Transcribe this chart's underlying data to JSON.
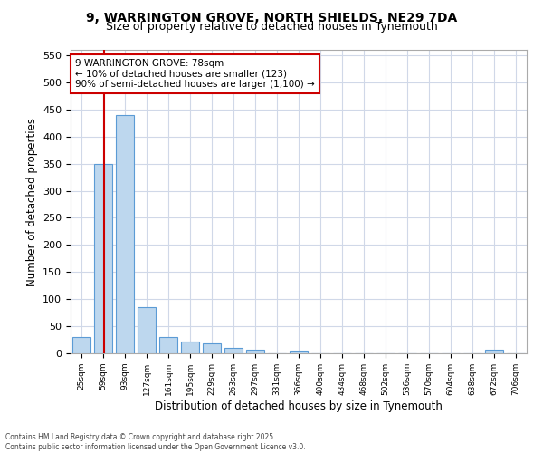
{
  "title_line1": "9, WARRINGTON GROVE, NORTH SHIELDS, NE29 7DA",
  "title_line2": "Size of property relative to detached houses in Tynemouth",
  "xlabel": "Distribution of detached houses by size in Tynemouth",
  "ylabel": "Number of detached properties",
  "categories": [
    "25sqm",
    "59sqm",
    "93sqm",
    "127sqm",
    "161sqm",
    "195sqm",
    "229sqm",
    "263sqm",
    "297sqm",
    "331sqm",
    "366sqm",
    "400sqm",
    "434sqm",
    "468sqm",
    "502sqm",
    "536sqm",
    "570sqm",
    "604sqm",
    "638sqm",
    "672sqm",
    "706sqm"
  ],
  "values": [
    30,
    350,
    440,
    85,
    30,
    22,
    18,
    10,
    7,
    0,
    5,
    0,
    0,
    0,
    0,
    0,
    0,
    0,
    0,
    6,
    0
  ],
  "bar_color": "#bdd7ee",
  "bar_edge_color": "#5b9bd5",
  "vline_color": "#cc0000",
  "annotation_text": "9 WARRINGTON GROVE: 78sqm\n← 10% of detached houses are smaller (123)\n90% of semi-detached houses are larger (1,100) →",
  "annotation_box_color": "#ffffff",
  "annotation_box_edge_color": "#cc0000",
  "ylim": [
    0,
    560
  ],
  "yticks": [
    0,
    50,
    100,
    150,
    200,
    250,
    300,
    350,
    400,
    450,
    500,
    550
  ],
  "grid_color": "#d0d8e8",
  "background_color": "#ffffff",
  "footer_line1": "Contains HM Land Registry data © Crown copyright and database right 2025.",
  "footer_line2": "Contains public sector information licensed under the Open Government Licence v3.0."
}
